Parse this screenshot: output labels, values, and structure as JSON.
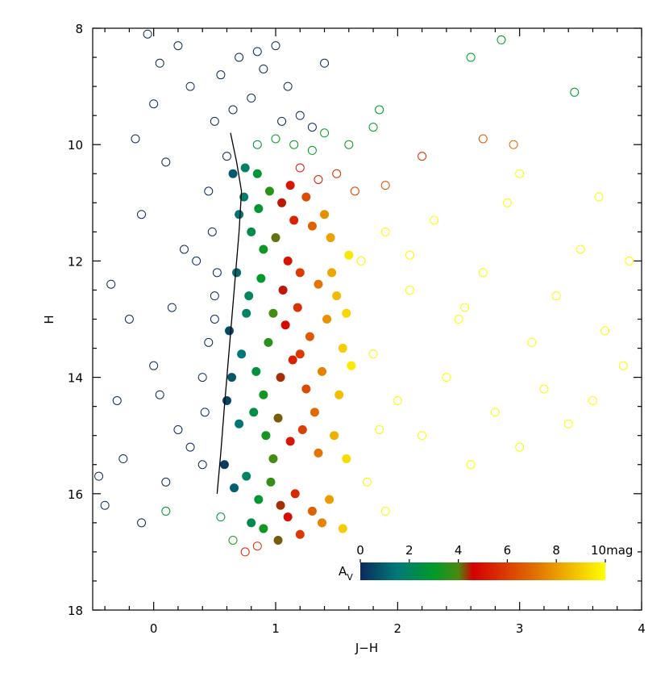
{
  "chart_data": {
    "type": "scatter",
    "xlabel": "J−H",
    "ylabel": "H",
    "xlim": [
      -0.5,
      4
    ],
    "ylim": [
      18,
      8
    ],
    "xticks": [
      0,
      1,
      2,
      3,
      4
    ],
    "yticks": [
      8,
      10,
      12,
      14,
      16,
      18
    ],
    "xminorticks": [
      -0.4,
      -0.2,
      0.2,
      0.4,
      0.6,
      0.8,
      1.2,
      1.4,
      1.6,
      1.8,
      2.2,
      2.4,
      2.6,
      2.8,
      3.2,
      3.4,
      3.6,
      3.8
    ],
    "yminorticks": [
      8.5,
      9,
      9.5,
      10.5,
      11,
      11.5,
      12.5,
      13,
      13.5,
      14.5,
      15,
      15.5,
      16.5,
      17,
      17.5
    ],
    "colormap": [
      {
        "value": 0,
        "color": "#0b2a5c"
      },
      {
        "value": 1.5,
        "color": "#007a78"
      },
      {
        "value": 3,
        "color": "#009a28"
      },
      {
        "value": 4,
        "color": "#4a8a10"
      },
      {
        "value": 4.6,
        "color": "#d40000"
      },
      {
        "value": 7,
        "color": "#e06a00"
      },
      {
        "value": 10,
        "color": "#ffff00"
      }
    ],
    "colorbar": {
      "label": "A",
      "label_sub": "V",
      "lim": [
        0,
        10
      ],
      "ticks": [
        0,
        2,
        4,
        6,
        8,
        {
          "value": 10,
          "label": "10mag"
        }
      ]
    },
    "open": {
      "x": [
        -0.45,
        -0.4,
        -0.3,
        -0.2,
        -0.1,
        -0.15,
        0.0,
        0.05,
        -0.05,
        0.2,
        0.3,
        0.1,
        0.25,
        0.15,
        0.05,
        -0.25,
        0.1,
        0.3,
        0.4,
        0.35,
        0.45,
        0.5,
        0.55,
        0.7,
        0.8,
        0.9,
        1.0,
        1.1,
        1.2,
        1.3,
        0.6,
        0.48,
        0.5,
        0.45,
        0.42,
        0.4,
        0.5,
        0.52,
        -0.35,
        0.0,
        0.2,
        -0.1,
        0.65,
        0.85,
        1.05,
        1.4,
        0.85,
        1.0,
        1.15,
        1.3,
        1.4,
        1.6,
        1.8,
        1.85,
        2.6,
        2.85,
        3.45,
        0.1,
        0.55,
        0.65,
        1.2,
        1.35,
        1.5,
        1.65,
        1.9,
        2.2,
        2.7,
        2.95,
        0.75,
        0.85,
        1.7,
        1.9,
        2.1,
        2.3,
        2.5,
        2.7,
        2.9,
        3.1,
        3.3,
        3.5,
        3.7,
        3.9,
        1.8,
        2.0,
        2.2,
        2.4,
        2.6,
        2.8,
        3.0,
        3.2,
        3.4,
        3.6,
        3.85,
        1.75,
        1.9,
        2.1,
        3.0,
        3.65,
        2.55,
        1.85
      ],
      "y": [
        15.7,
        16.2,
        14.4,
        13.0,
        11.2,
        9.9,
        9.3,
        8.6,
        8.1,
        8.3,
        9.0,
        10.3,
        11.8,
        12.8,
        14.3,
        15.4,
        15.8,
        15.2,
        14.0,
        12.0,
        10.8,
        9.6,
        8.8,
        8.5,
        9.2,
        8.7,
        8.3,
        9.0,
        9.5,
        9.7,
        10.2,
        11.5,
        12.6,
        13.4,
        14.6,
        15.5,
        13.0,
        12.2,
        12.4,
        13.8,
        14.9,
        16.5,
        9.4,
        8.4,
        9.6,
        8.6,
        10.0,
        9.9,
        10.0,
        10.1,
        9.8,
        10.0,
        9.7,
        9.4,
        8.5,
        8.2,
        9.1,
        16.3,
        16.4,
        16.8,
        10.4,
        10.6,
        10.5,
        10.8,
        10.7,
        10.2,
        9.9,
        10.0,
        17.0,
        16.9,
        12.0,
        11.5,
        12.5,
        11.3,
        13.0,
        12.2,
        11.0,
        13.4,
        12.6,
        11.8,
        13.2,
        12.0,
        13.6,
        14.4,
        15.0,
        14.0,
        15.5,
        14.6,
        15.2,
        14.2,
        14.8,
        14.4,
        13.8,
        15.8,
        16.3,
        11.9,
        10.5,
        10.9,
        12.8,
        14.9
      ],
      "av": [
        0,
        0,
        0,
        0,
        0,
        0,
        0,
        0,
        0,
        0,
        0,
        0,
        0,
        0,
        0,
        0,
        0,
        0,
        0,
        0,
        0,
        0,
        0,
        0,
        0,
        0,
        0,
        0,
        0,
        0,
        0,
        0,
        0,
        0,
        0,
        0,
        0,
        0,
        0,
        0,
        0,
        0,
        0,
        0,
        0,
        0,
        2.5,
        3.0,
        3.2,
        3.0,
        3.2,
        3.3,
        3.0,
        3.0,
        3.0,
        3.1,
        3.0,
        3.0,
        2.5,
        3.5,
        5.0,
        5.2,
        5.5,
        6.0,
        6.3,
        5.5,
        6.5,
        7.0,
        5.5,
        5.8,
        9.8,
        9.8,
        9.9,
        9.9,
        9.9,
        9.9,
        9.9,
        9.9,
        9.9,
        9.9,
        9.9,
        9.9,
        9.8,
        9.9,
        9.9,
        9.9,
        9.9,
        9.9,
        9.9,
        9.9,
        9.9,
        9.9,
        9.9,
        9.8,
        9.9,
        9.9,
        9.9,
        9.9,
        9.9,
        9.8
      ]
    },
    "filled": {
      "x": [
        0.65,
        0.75,
        0.85,
        0.95,
        1.05,
        1.15,
        1.3,
        1.45,
        1.6,
        0.7,
        0.8,
        0.9,
        1.0,
        1.1,
        1.2,
        1.35,
        1.5,
        1.58,
        0.68,
        0.78,
        0.88,
        0.98,
        1.08,
        1.18,
        1.28,
        1.42,
        1.55,
        0.62,
        0.72,
        0.84,
        0.94,
        1.04,
        1.14,
        1.25,
        1.38,
        1.52,
        0.6,
        0.7,
        0.82,
        0.92,
        1.02,
        1.12,
        1.22,
        1.35,
        1.48,
        1.58,
        0.58,
        0.66,
        0.76,
        0.86,
        0.96,
        1.04,
        1.16,
        1.3,
        1.44,
        1.55,
        0.8,
        0.9,
        1.02,
        1.2,
        1.38,
        0.74,
        0.86,
        1.12,
        1.25,
        1.4,
        0.64,
        0.76,
        0.9,
        1.06,
        1.2,
        1.32,
        1.46,
        1.62,
        0.98,
        1.1
      ],
      "y": [
        10.5,
        10.4,
        10.5,
        10.8,
        11.0,
        11.3,
        11.4,
        11.6,
        11.9,
        11.2,
        11.5,
        11.8,
        11.6,
        12.0,
        12.2,
        12.4,
        12.6,
        12.9,
        12.2,
        12.6,
        12.3,
        12.9,
        13.1,
        12.8,
        13.3,
        13.0,
        13.5,
        13.2,
        13.6,
        13.9,
        13.4,
        14.0,
        13.7,
        14.2,
        13.9,
        14.3,
        14.4,
        14.8,
        14.6,
        15.0,
        14.7,
        15.1,
        14.9,
        15.3,
        15.0,
        15.4,
        15.5,
        15.9,
        15.7,
        16.1,
        15.8,
        16.2,
        16.0,
        16.3,
        16.1,
        16.6,
        16.5,
        16.6,
        16.8,
        16.7,
        16.5,
        10.9,
        11.1,
        10.7,
        10.9,
        11.2,
        14.0,
        12.9,
        14.3,
        12.5,
        13.6,
        14.6,
        12.2,
        13.8,
        15.4,
        16.4
      ],
      "av": [
        0.9,
        1.8,
        2.7,
        3.6,
        4.5,
        5.4,
        6.8,
        8.1,
        9.5,
        1.4,
        2.3,
        3.2,
        4.1,
        5.0,
        5.9,
        7.2,
        8.6,
        9.2,
        1.2,
        2.1,
        3.0,
        3.9,
        4.8,
        5.7,
        6.6,
        7.8,
        9.0,
        0.6,
        1.5,
        2.6,
        3.5,
        4.4,
        5.3,
        6.3,
        7.5,
        8.7,
        0.5,
        1.4,
        2.4,
        3.3,
        4.2,
        5.1,
        6.0,
        7.2,
        8.4,
        9.3,
        0.3,
        1.0,
        1.9,
        2.8,
        3.7,
        4.4,
        5.5,
        6.8,
        8.0,
        9.0,
        2.3,
        3.2,
        4.2,
        5.9,
        7.5,
        1.7,
        2.8,
        5.1,
        6.3,
        7.7,
        0.8,
        1.9,
        3.2,
        4.5,
        5.9,
        7.0,
        8.2,
        9.6,
        3.9,
        4.9
      ]
    },
    "isochrone": {
      "x": [
        0.63,
        0.68,
        0.72,
        0.7,
        0.66,
        0.62,
        0.58,
        0.55,
        0.52
      ],
      "y": [
        9.8,
        10.3,
        10.8,
        11.5,
        12.5,
        13.5,
        14.5,
        15.3,
        16.0
      ],
      "color": "#000000"
    }
  }
}
